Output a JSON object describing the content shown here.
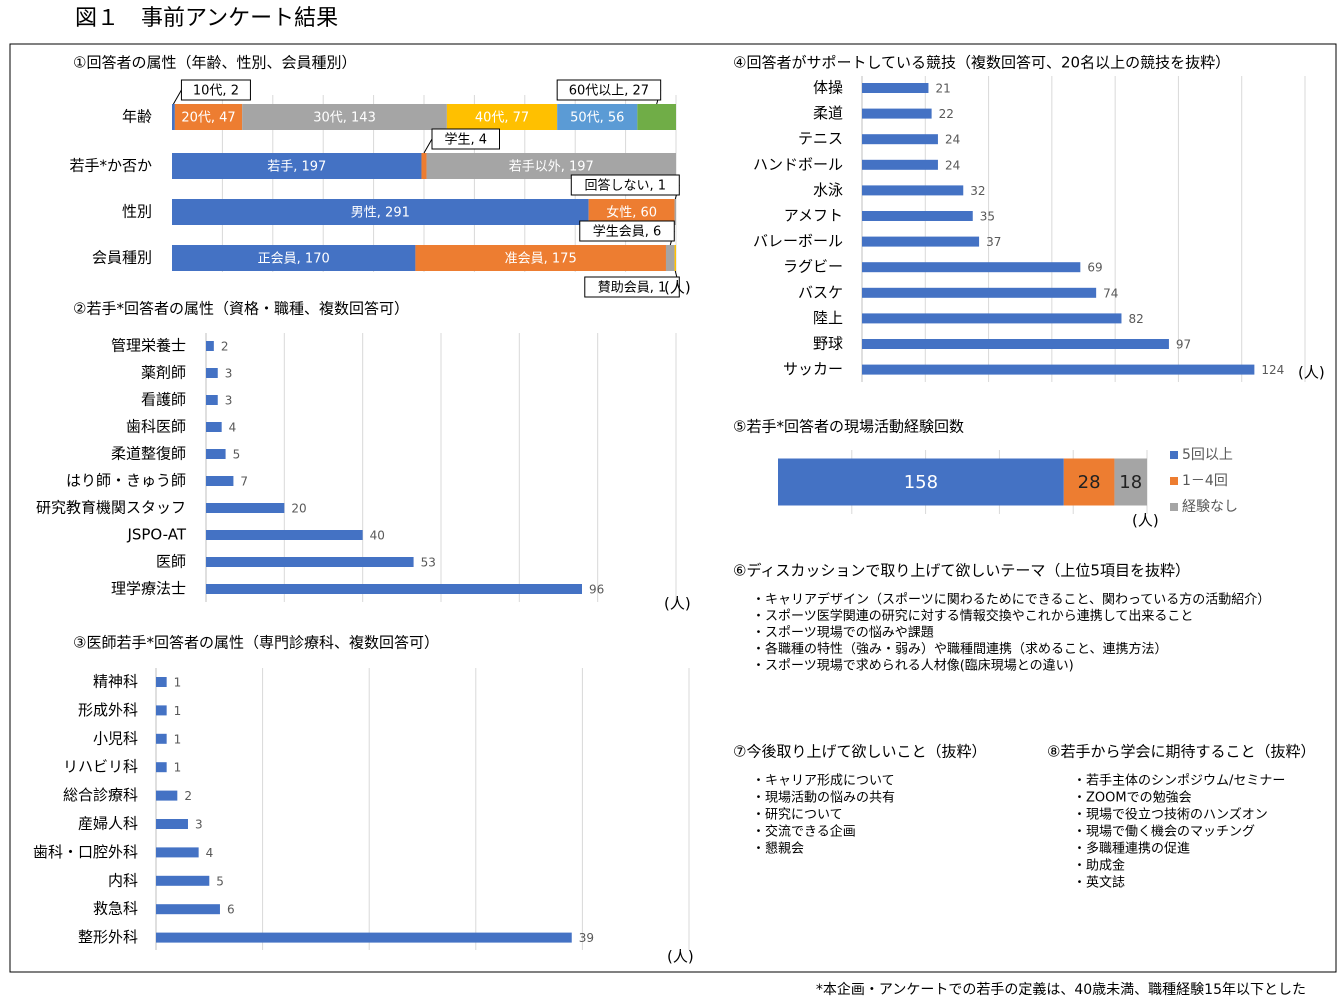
{
  "title": "図１　事前アンケート結果",
  "footnote": "*本企画・アンケートでの若手の定義は、40歳未満、職種経験15年以下とした",
  "chart_data": [
    {
      "type": "stacked-bar",
      "title": "①回答者の属性（年齢、性別、会員種別）",
      "unit": "(人)",
      "categories": [
        "年齢",
        "若手*か否か",
        "性別",
        "会員種別"
      ],
      "stacks": [
        {
          "values": [
            2,
            47,
            143,
            77,
            56,
            27
          ],
          "value_labels": [
            "10代, 2",
            "20代, 47",
            "30代, 143",
            "40代, 77",
            "50代, 56",
            "60代以上, 27"
          ],
          "colors": [
            "#4472c4",
            "#ed7d31",
            "#a5a5a5",
            "#ffc000",
            "#5b9bd5",
            "#70ad47"
          ]
        },
        {
          "values": [
            197,
            4,
            197
          ],
          "value_labels": [
            "若手, 197",
            "学生, 4",
            "若手以外, 197"
          ],
          "colors": [
            "#4472c4",
            "#ed7d31",
            "#a5a5a5"
          ]
        },
        {
          "values": [
            291,
            60,
            1
          ],
          "value_labels": [
            "男性, 291",
            "女性, 60",
            "回答しない, 1"
          ],
          "colors": [
            "#4472c4",
            "#ed7d31",
            "#a5a5a5"
          ]
        },
        {
          "values": [
            170,
            175,
            6,
            1
          ],
          "value_labels": [
            "正会員, 170",
            "准会員, 175",
            "学生会員, 6",
            "賛助会員, 1"
          ],
          "colors": [
            "#4472c4",
            "#ed7d31",
            "#a5a5a5",
            "#ffc000"
          ]
        }
      ],
      "grid": true
    },
    {
      "type": "hbar",
      "title": "②若手*回答者の属性（資格・職種、複数回答可）",
      "unit": "(人)",
      "categories": [
        "管理栄養士",
        "薬剤師",
        "看護師",
        "歯科医師",
        "柔道整復師",
        "はり師・きゅう師",
        "研究教育機関スタッフ",
        "JSPO-AT",
        "医師",
        "理学療法士"
      ],
      "values": [
        2,
        3,
        3,
        4,
        5,
        7,
        20,
        40,
        53,
        96
      ],
      "color": "#4472c4",
      "xlim": [
        0,
        120
      ],
      "grid": true
    },
    {
      "type": "hbar",
      "title": "③医師若手*回答者の属性（専門診療科、複数回答可）",
      "unit": "(人)",
      "categories": [
        "精神科",
        "形成外科",
        "小児科",
        "リハビリ科",
        "総合診療科",
        "産婦人科",
        "歯科・口腔外科",
        "内科",
        "救急科",
        "整形外科"
      ],
      "values": [
        1,
        1,
        1,
        1,
        2,
        3,
        4,
        5,
        6,
        39
      ],
      "color": "#4472c4",
      "xlim": [
        0,
        50
      ],
      "grid": true
    },
    {
      "type": "hbar",
      "title": "④回答者がサポートしている競技（複数回答可、20名以上の競技を抜粋）",
      "unit": "(人)",
      "categories": [
        "体操",
        "柔道",
        "テニス",
        "ハンドボール",
        "水泳",
        "アメフト",
        "バレーボール",
        "ラグビー",
        "バスケ",
        "陸上",
        "野球",
        "サッカー"
      ],
      "values": [
        21,
        22,
        24,
        24,
        32,
        35,
        37,
        69,
        74,
        82,
        97,
        124
      ],
      "color": "#4472c4",
      "xlim": [
        0,
        140
      ],
      "grid": true
    },
    {
      "type": "stacked-bar",
      "title": "⑤若手*回答者の現場活動経験回数",
      "unit": "(人)",
      "series": [
        {
          "name": "5回以上",
          "color": "#4472c4",
          "values": [
            158
          ]
        },
        {
          "name": "1－4回",
          "color": "#ed7d31",
          "values": [
            28
          ]
        },
        {
          "name": "経験なし",
          "color": "#a5a5a5",
          "values": [
            18
          ]
        }
      ],
      "legend": "right",
      "grid": true
    }
  ],
  "sections": [
    {
      "title": "⑥ディスカッションで取り上げて欲しいテーマ（上位5項目を抜粋）",
      "items": [
        "・キャリアデザイン（スポーツに関わるためにできること、関わっている方の活動紹介）",
        "・スポーツ医学関連の研究に対する情報交換やこれから連携して出来ること",
        "・スポーツ現場での悩みや課題",
        "・各職種の特性（強み・弱み）や職種間連携（求めること、連携方法）",
        "・スポーツ現場で求められる人材像(臨床現場との違い)"
      ]
    },
    {
      "title": "⑦今後取り上げて欲しいこと（抜粋）",
      "items": [
        "・キャリア形成について",
        "・現場活動の悩みの共有",
        "・研究について",
        "・交流できる企画",
        "・懇親会"
      ]
    },
    {
      "title": "⑧若手から学会に期待すること（抜粋）",
      "items": [
        "・若手主体のシンポジウム/セミナー",
        "・ZOOMでの勉強会",
        "・現場で役立つ技術のハンズオン",
        "・現場で働く機会のマッチング",
        "・多職種連携の促進",
        "・助成金",
        "・英文誌"
      ]
    }
  ]
}
